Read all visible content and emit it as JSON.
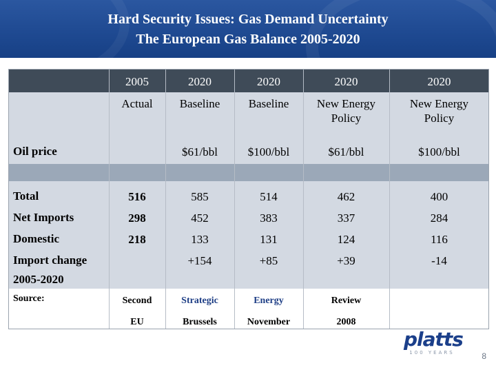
{
  "title": {
    "line1": "Hard Security Issues: Gas Demand Uncertainty",
    "line2": "The European Gas Balance 2005-2020"
  },
  "table": {
    "years": [
      "2005",
      "2020",
      "2020",
      "2020",
      "2020"
    ],
    "scenarios": [
      "Actual",
      "Baseline",
      "Baseline",
      "New Energy Policy",
      "New Energy Policy"
    ],
    "oil_price": {
      "label": "Oil price",
      "values": [
        "",
        "$61/bbl",
        "$100/bbl",
        "$61/bbl",
        "$100/bbl"
      ]
    },
    "rows": [
      {
        "label": "Total",
        "values": [
          "516",
          "585",
          "514",
          "462",
          "400"
        ]
      },
      {
        "label": "Net Imports",
        "values": [
          "298",
          "452",
          "383",
          "337",
          "284"
        ]
      },
      {
        "label": "Domestic",
        "values": [
          "218",
          "133",
          "131",
          "124",
          "116"
        ]
      }
    ],
    "import_change": {
      "label_line1": "Import change",
      "label_line2": "2005-2020",
      "values": [
        "",
        "+154",
        "+85",
        "+39",
        "-14"
      ]
    },
    "source": {
      "label": "Source:",
      "line1": [
        "Second",
        "Strategic",
        "Energy",
        "Review"
      ],
      "line2": [
        "EU",
        "Brussels",
        "November",
        "2008"
      ]
    }
  },
  "logo": {
    "word": "platts",
    "tagline": "100 YEARS"
  },
  "page_number": "8"
}
